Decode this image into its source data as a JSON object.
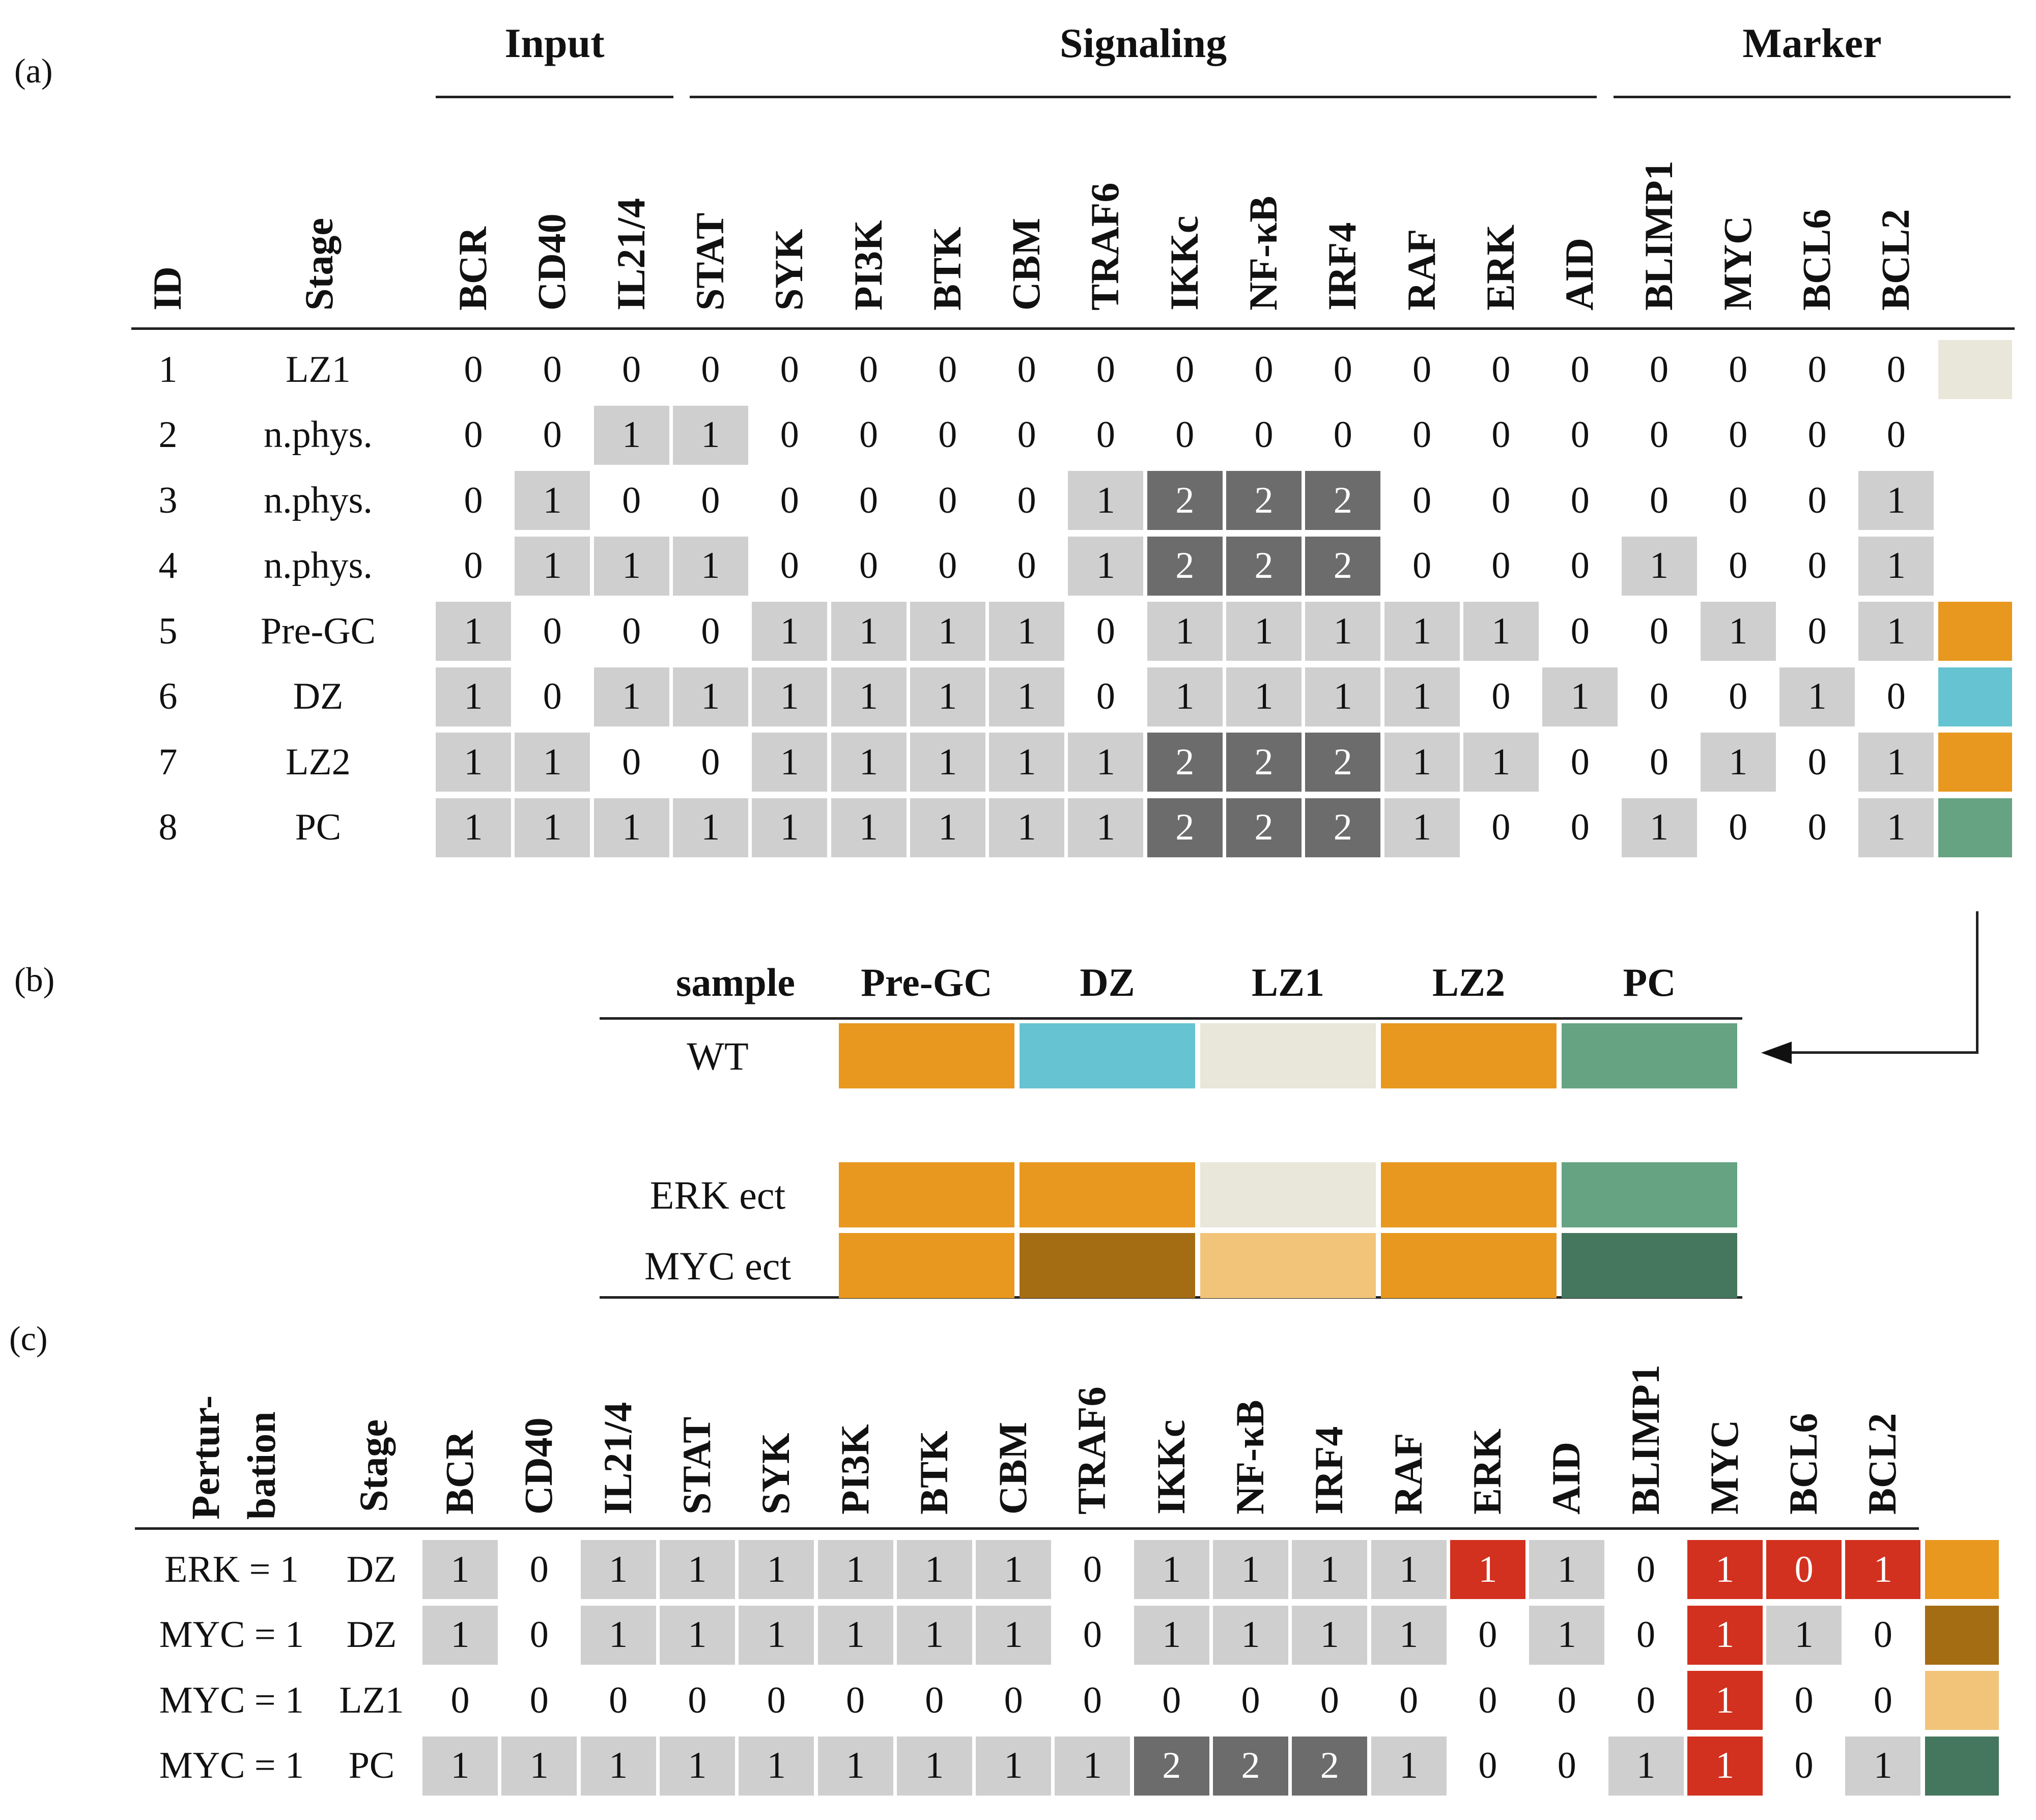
{
  "panels": {
    "a": "(a)",
    "b": "(b)",
    "c": "(c)"
  },
  "colors": {
    "lz1": "#e9e6da",
    "pre_gc": "#e8981e",
    "dz": "#66c3d1",
    "pc": "#66a382",
    "dz_dark": "#a46c13",
    "lz1_light": "#f1c47a",
    "pc_dark": "#45765e",
    "gray1": "#cfcfcf",
    "gray2": "#6d6c6c",
    "red": "#d2311f"
  },
  "panel_a": {
    "groups": [
      "Input",
      "Signaling",
      "Marker"
    ],
    "headers": [
      "ID",
      "Stage",
      "BCR",
      "CD40",
      "IL21/4",
      "STAT",
      "SYK",
      "PI3K",
      "BTK",
      "CBM",
      "TRAF6",
      "IKKc",
      "NF-κB",
      "IRF4",
      "RAF",
      "ERK",
      "AID",
      "BLIMP1",
      "MYC",
      "BCL6",
      "BCL2"
    ],
    "rows": [
      {
        "id": "1",
        "stage": "LZ1",
        "values": [
          0,
          0,
          0,
          0,
          0,
          0,
          0,
          0,
          0,
          0,
          0,
          0,
          0,
          0,
          0,
          0,
          0,
          0,
          0
        ],
        "swatch": "lz1"
      },
      {
        "id": "2",
        "stage": "n.phys.",
        "values": [
          0,
          0,
          1,
          1,
          0,
          0,
          0,
          0,
          0,
          0,
          0,
          0,
          0,
          0,
          0,
          0,
          0,
          0,
          0
        ],
        "swatch": ""
      },
      {
        "id": "3",
        "stage": "n.phys.",
        "values": [
          0,
          1,
          0,
          0,
          0,
          0,
          0,
          0,
          1,
          2,
          2,
          2,
          0,
          0,
          0,
          0,
          0,
          0,
          1
        ],
        "swatch": ""
      },
      {
        "id": "4",
        "stage": "n.phys.",
        "values": [
          0,
          1,
          1,
          1,
          0,
          0,
          0,
          0,
          1,
          2,
          2,
          2,
          0,
          0,
          0,
          1,
          0,
          0,
          1
        ],
        "swatch": ""
      },
      {
        "id": "5",
        "stage": "Pre-GC",
        "values": [
          1,
          0,
          0,
          0,
          1,
          1,
          1,
          1,
          0,
          1,
          1,
          1,
          1,
          1,
          0,
          0,
          1,
          0,
          1
        ],
        "swatch": "pre_gc"
      },
      {
        "id": "6",
        "stage": "DZ",
        "values": [
          1,
          0,
          1,
          1,
          1,
          1,
          1,
          1,
          0,
          1,
          1,
          1,
          1,
          0,
          1,
          0,
          0,
          1,
          0
        ],
        "swatch": "dz"
      },
      {
        "id": "7",
        "stage": "LZ2",
        "values": [
          1,
          1,
          0,
          0,
          1,
          1,
          1,
          1,
          1,
          2,
          2,
          2,
          1,
          1,
          0,
          0,
          1,
          0,
          1
        ],
        "swatch": "pre_gc"
      },
      {
        "id": "8",
        "stage": "PC",
        "values": [
          1,
          1,
          1,
          1,
          1,
          1,
          1,
          1,
          1,
          2,
          2,
          2,
          1,
          0,
          0,
          1,
          0,
          0,
          1
        ],
        "swatch": "pc"
      }
    ]
  },
  "panel_b": {
    "headers": [
      "sample",
      "Pre-GC",
      "DZ",
      "LZ1",
      "LZ2",
      "PC"
    ],
    "rows": [
      {
        "label": "WT",
        "colors": [
          "pre_gc",
          "dz",
          "lz1",
          "pre_gc",
          "pc"
        ]
      },
      {
        "label": "ERK ect",
        "colors": [
          "pre_gc",
          "pre_gc",
          "lz1",
          "pre_gc",
          "pc"
        ]
      },
      {
        "label": "MYC ect",
        "colors": [
          "pre_gc",
          "dz_dark",
          "lz1_light",
          "pre_gc",
          "pc_dark"
        ]
      }
    ]
  },
  "panel_c": {
    "pert_header_line1": "Pertur-",
    "pert_header_line2": "bation",
    "headers": [
      "Stage",
      "BCR",
      "CD40",
      "IL21/4",
      "STAT",
      "SYK",
      "PI3K",
      "BTK",
      "CBM",
      "TRAF6",
      "IKKc",
      "NF-κB",
      "IRF4",
      "RAF",
      "ERK",
      "AID",
      "BLIMP1",
      "MYC",
      "BCL6",
      "BCL2"
    ],
    "rows": [
      {
        "pert": "ERK = 1",
        "stage": "DZ",
        "values": [
          1,
          0,
          1,
          1,
          1,
          1,
          1,
          1,
          0,
          1,
          1,
          1,
          1,
          1,
          1,
          0,
          1,
          0,
          1
        ],
        "red": [
          13,
          16,
          17,
          18
        ],
        "swatch": "pre_gc"
      },
      {
        "pert": "MYC = 1",
        "stage": "DZ",
        "values": [
          1,
          0,
          1,
          1,
          1,
          1,
          1,
          1,
          0,
          1,
          1,
          1,
          1,
          0,
          1,
          0,
          1,
          1,
          0
        ],
        "red": [
          16
        ],
        "swatch": "dz_dark"
      },
      {
        "pert": "MYC = 1",
        "stage": "LZ1",
        "values": [
          0,
          0,
          0,
          0,
          0,
          0,
          0,
          0,
          0,
          0,
          0,
          0,
          0,
          0,
          0,
          0,
          1,
          0,
          0
        ],
        "red": [
          16
        ],
        "swatch": "lz1_light"
      },
      {
        "pert": "MYC = 1",
        "stage": "PC",
        "values": [
          1,
          1,
          1,
          1,
          1,
          1,
          1,
          1,
          1,
          2,
          2,
          2,
          1,
          0,
          0,
          1,
          1,
          0,
          1
        ],
        "red": [
          16
        ],
        "swatch": "pc_dark"
      }
    ]
  }
}
